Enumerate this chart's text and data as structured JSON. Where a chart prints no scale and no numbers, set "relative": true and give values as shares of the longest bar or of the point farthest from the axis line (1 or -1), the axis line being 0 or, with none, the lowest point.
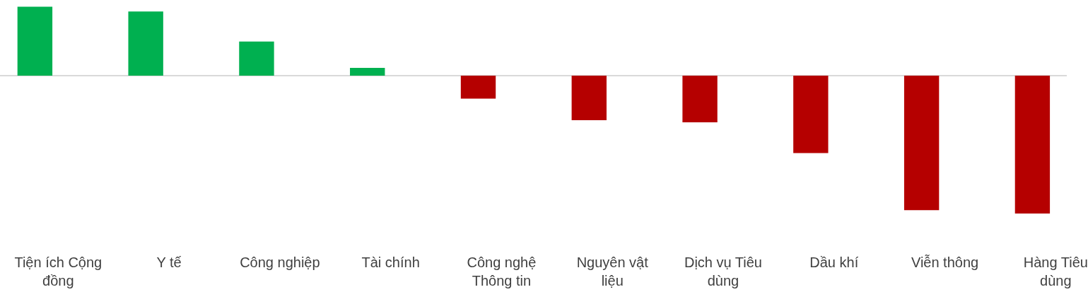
{
  "chart_data": {
    "type": "bar",
    "relative": true,
    "categories": [
      "Tiện ích Cộng đồng",
      "Y tế",
      "Công nghiệp",
      "Tài chính",
      "Công nghệ Thông tin",
      "Nguyên vật liệu",
      "Dịch vụ Tiêu dùng",
      "Dầu khí",
      "Viễn thông",
      "Hàng Tiêu dùng"
    ],
    "values": [
      0.5,
      0.465,
      0.247,
      0.056,
      -0.167,
      -0.323,
      -0.338,
      -0.561,
      -0.975,
      -1
    ],
    "colors": [
      "#00b050",
      "#00b050",
      "#00b050",
      "#00b050",
      "#b50000",
      "#b50000",
      "#b50000",
      "#b50000",
      "#b50000",
      "#b50000"
    ],
    "legend": false
  }
}
